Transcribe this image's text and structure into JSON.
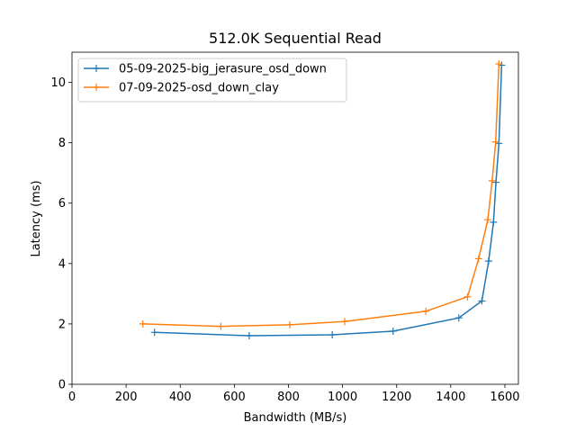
{
  "chart_data": {
    "type": "line",
    "title": "512.0K  Sequential Read",
    "xlabel": "Bandwidth (MB/s)",
    "ylabel": "Latency (ms)",
    "xlim": [
      0,
      1650
    ],
    "ylim": [
      0,
      11
    ],
    "xticks": [
      0,
      200,
      400,
      600,
      800,
      1000,
      1200,
      1400,
      1600
    ],
    "yticks": [
      0,
      2,
      4,
      6,
      8,
      10
    ],
    "grid": false,
    "legend_position": "upper-left",
    "series": [
      {
        "name": "05-09-2025-big_jerasure_osd_down",
        "color": "#1f77b4",
        "marker": "+",
        "x": [
          305,
          655,
          962,
          1187,
          1430,
          1515,
          1540,
          1558,
          1567,
          1578,
          1588
        ],
        "y": [
          1.72,
          1.61,
          1.64,
          1.76,
          2.2,
          2.76,
          4.08,
          5.37,
          6.69,
          7.98,
          10.57
        ]
      },
      {
        "name": "07-09-2025-osd_down_clay",
        "color": "#ff7f0e",
        "marker": "+",
        "x": [
          262,
          550,
          805,
          1008,
          1308,
          1462,
          1503,
          1537,
          1553,
          1566,
          1578
        ],
        "y": [
          2.0,
          1.92,
          1.97,
          2.08,
          2.42,
          2.9,
          4.16,
          5.45,
          6.74,
          8.03,
          10.61
        ]
      }
    ]
  }
}
